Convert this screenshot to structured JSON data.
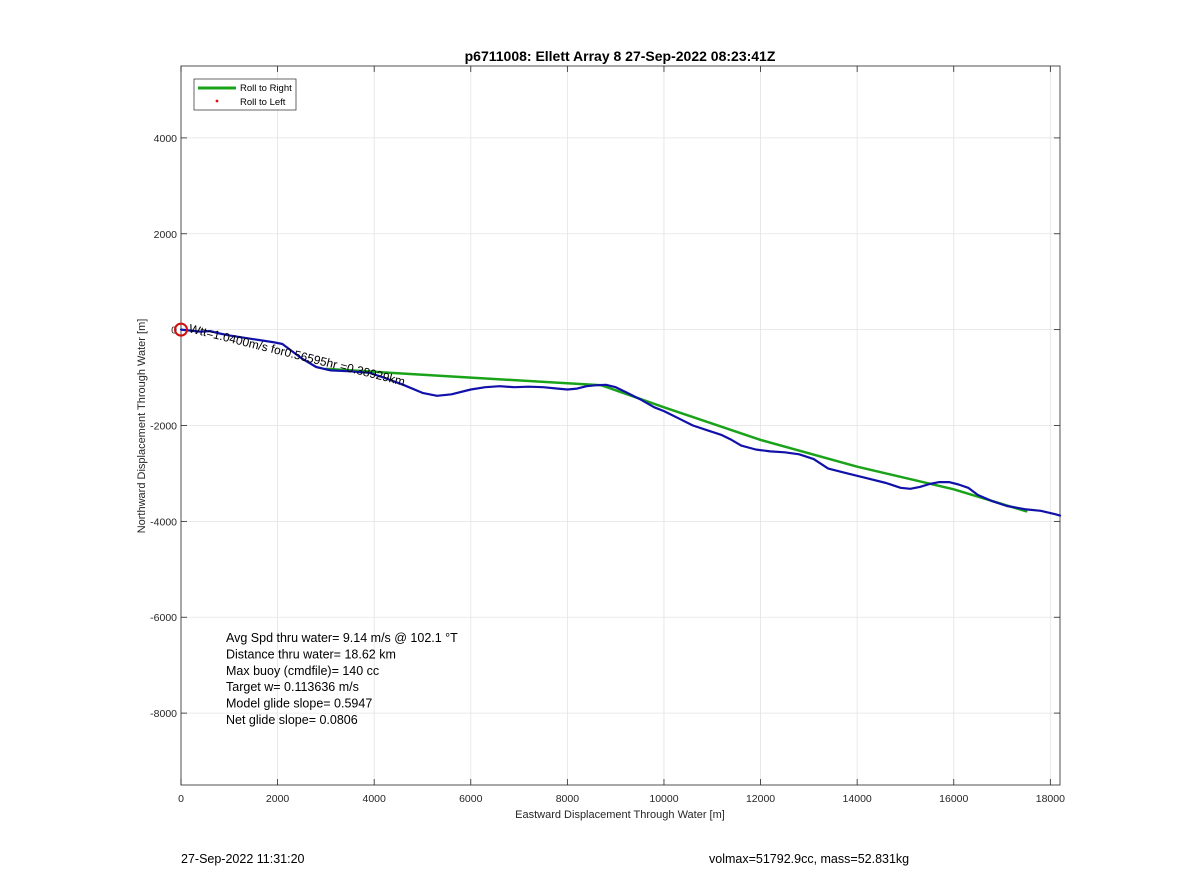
{
  "chart_data": {
    "type": "line",
    "title": "p6711008: Ellett Array 8 27-Sep-2022 08:23:41Z",
    "xlabel": "Eastward Displacement Through Water [m]",
    "ylabel": "Northward Displacement Through Water [m]",
    "xlim": [
      0,
      18200
    ],
    "ylim": [
      -9500,
      5500
    ],
    "xticks": [
      0,
      2000,
      4000,
      6000,
      8000,
      10000,
      12000,
      14000,
      16000,
      18000
    ],
    "yticks": [
      -8000,
      -6000,
      -4000,
      -2000,
      0,
      2000,
      4000
    ],
    "grid": true,
    "legend": {
      "placement": "top-left",
      "entries": [
        {
          "label": "Roll to Right",
          "color": "#1aa31a",
          "style": "line"
        },
        {
          "label": "Roll to Left",
          "color": "#e01010",
          "style": "dot"
        }
      ]
    },
    "series": [
      {
        "name": "Roll to Right",
        "color": "#1aa31a",
        "x": [
          3000,
          4000,
          6000,
          8000,
          8700,
          10000,
          12000,
          14000,
          16000,
          17500
        ],
        "y": [
          -820,
          -880,
          -1000,
          -1120,
          -1160,
          -1620,
          -2300,
          -2860,
          -3330,
          -3790
        ]
      },
      {
        "name": "",
        "color": "#1111aa",
        "x": [
          0,
          200,
          400,
          600,
          800,
          1000,
          1500,
          1900,
          2100,
          2300,
          2500,
          2800,
          3100,
          3500,
          3900,
          4200,
          4600,
          5000,
          5300,
          5600,
          6000,
          6300,
          6600,
          6900,
          7200,
          7500,
          7800,
          8000,
          8200,
          8400,
          8600,
          8800,
          9000,
          9200,
          9500,
          9800,
          10000,
          10300,
          10600,
          10900,
          11200,
          11400,
          11600,
          11900,
          12200,
          12500,
          12800,
          13100,
          13400,
          13800,
          14200,
          14600,
          14900,
          15100,
          15300,
          15500,
          15700,
          15900,
          16100,
          16300,
          16500,
          16800,
          17100,
          17500,
          17800,
          18100,
          18200
        ],
        "y": [
          0,
          -20,
          -40,
          -30,
          -80,
          -120,
          -200,
          -260,
          -300,
          -450,
          -600,
          -780,
          -850,
          -870,
          -900,
          -1000,
          -1150,
          -1320,
          -1380,
          -1350,
          -1250,
          -1200,
          -1180,
          -1200,
          -1190,
          -1200,
          -1230,
          -1250,
          -1230,
          -1180,
          -1160,
          -1150,
          -1200,
          -1300,
          -1450,
          -1620,
          -1700,
          -1850,
          -2000,
          -2100,
          -2200,
          -2300,
          -2420,
          -2500,
          -2540,
          -2560,
          -2600,
          -2700,
          -2900,
          -3000,
          -3100,
          -3200,
          -3300,
          -3320,
          -3280,
          -3220,
          -3180,
          -3180,
          -3230,
          -3300,
          -3450,
          -3580,
          -3680,
          -3750,
          -3780,
          -3850,
          -3880
        ]
      }
    ],
    "markers": [
      {
        "x": 0,
        "y": 0,
        "shape": "circle",
        "color": "#d01010"
      }
    ],
    "annotation": {
      "text": "Wtt=1.0400m/s for0.56595hr =0.38929km",
      "x": 150,
      "y": -50,
      "rotation_deg": 14
    },
    "stats": [
      "Avg Spd thru water=  9.14 m/s @ 102.1 °T",
      "Distance thru water= 18.62 km",
      "Max buoy (cmdfile)= 140 cc",
      "Target w= 0.113636 m/s",
      "Model glide slope= 0.5947",
      "Net glide slope= 0.0806"
    ]
  },
  "footer": {
    "timestamp": "27-Sep-2022 11:31:20",
    "summary": "volmax=51792.9cc, mass=52.831kg"
  }
}
